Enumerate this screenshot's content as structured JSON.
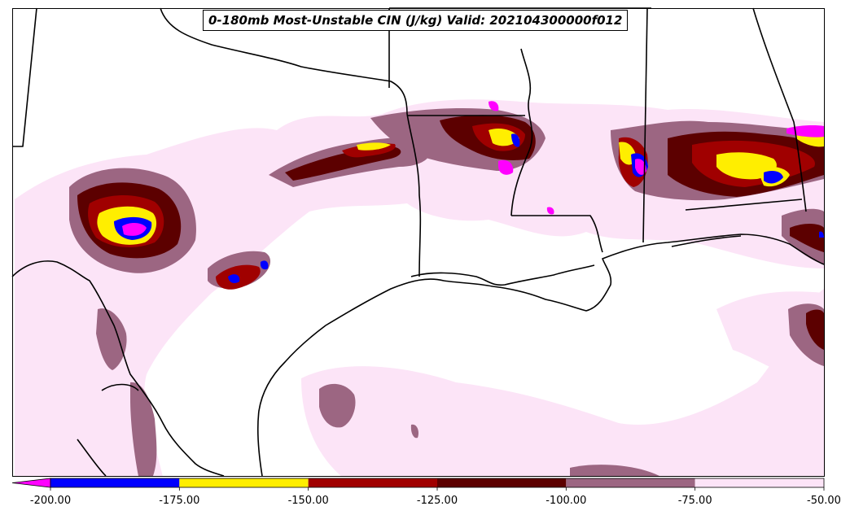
{
  "title": "0-180mb Most-Unstable CIN (J/kg) Valid: 202104300000f012",
  "colorbar": {
    "extend": "min",
    "extension_color": "#ff00ff",
    "bins": [
      {
        "from": -200,
        "to": -175,
        "color": "#0000ff"
      },
      {
        "from": -175,
        "to": -150,
        "color": "#ffee00"
      },
      {
        "from": -150,
        "to": -125,
        "color": "#a00000"
      },
      {
        "from": -125,
        "to": -100,
        "color": "#5c0000"
      },
      {
        "from": -100,
        "to": -75,
        "color": "#9c6682"
      },
      {
        "from": -75,
        "to": -50,
        "color": "#fce4f7"
      }
    ],
    "tick_labels": [
      "-200.00",
      "-175.00",
      "-150.00",
      "-125.00",
      "-100.00",
      "-75.00",
      "-50.00"
    ]
  },
  "colors": {
    "land_outline": "#000000",
    "frame": "#000000",
    "background": "#ffffff"
  }
}
